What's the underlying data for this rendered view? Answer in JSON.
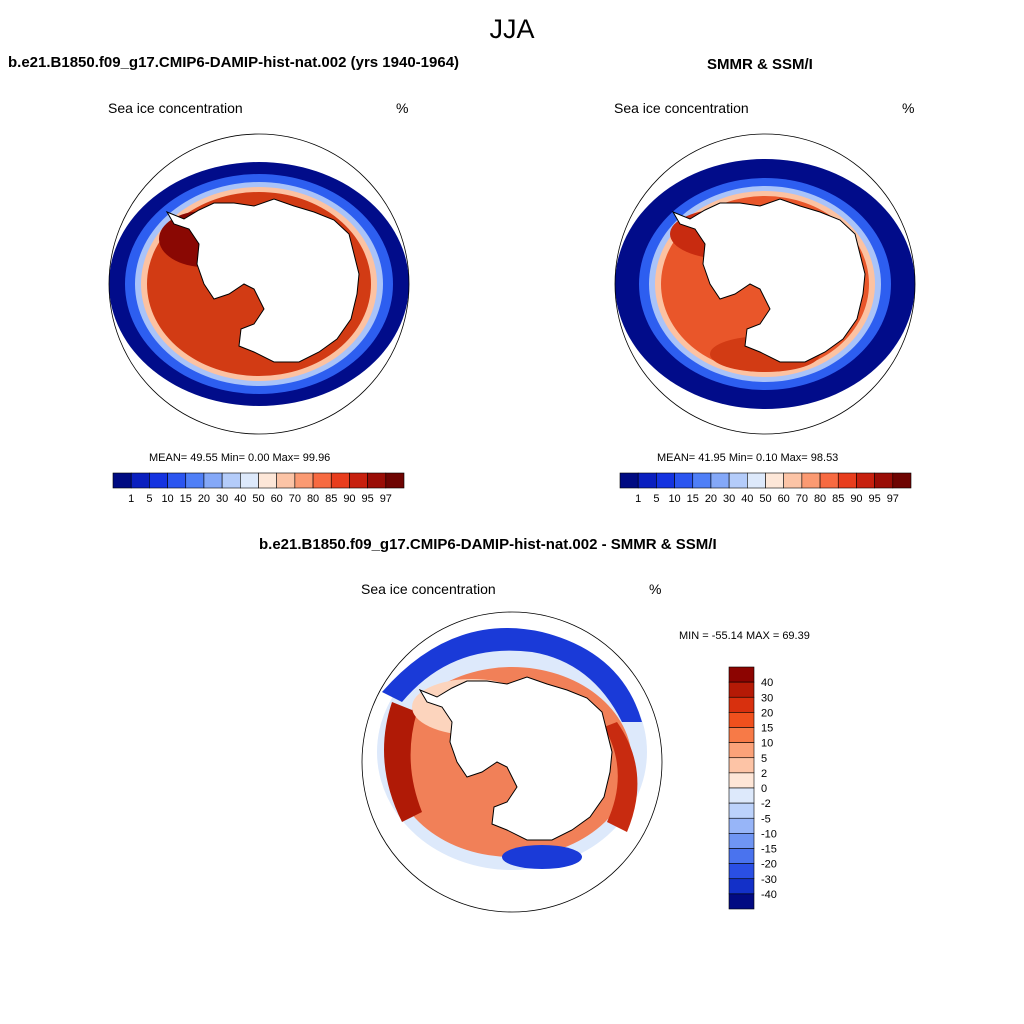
{
  "figure": {
    "season": "JJA"
  },
  "panels": [
    {
      "title": "b.e21.B1850.f09_g17.CMIP6-DAMIP-hist-nat.002 (yrs 1940-1964)",
      "variable": "Sea ice concentration",
      "units": "%",
      "stats": "MEAN=  49.55  Min=   0.00  Max=  99.96",
      "ice": {
        "outer_edge": "dark-blue",
        "band": "dark-red"
      }
    },
    {
      "title": "SMMR & SSM/I",
      "variable": "Sea ice concentration",
      "units": "%",
      "stats": "MEAN=  41.95  Min=   0.10  Max=  98.53"
    },
    {
      "title": "b.e21.B1850.f09_g17.CMIP6-DAMIP-hist-nat.002 - SMMR & SSM/I",
      "variable": "Sea ice concentration",
      "units": "%",
      "minmax": "MIN = -55.14 MAX =  69.39"
    }
  ],
  "colorbar_conc": {
    "labels": [
      "1",
      "5",
      "10",
      "15",
      "20",
      "30",
      "40",
      "50",
      "60",
      "70",
      "80",
      "85",
      "90",
      "95",
      "97"
    ],
    "colors": [
      "#000b82",
      "#0a1fbf",
      "#1433e0",
      "#2b55f0",
      "#4f7ff7",
      "#84a8f8",
      "#b4ccfa",
      "#dde9fb",
      "#fde7d8",
      "#fcc4a6",
      "#fb9a72",
      "#f76a41",
      "#e83d1d",
      "#c7200e",
      "#9a0d06",
      "#6e0402"
    ]
  },
  "colorbar_diff": {
    "labels": [
      "40",
      "30",
      "20",
      "15",
      "10",
      "5",
      "2",
      "0",
      "-2",
      "-5",
      "-10",
      "-15",
      "-20",
      "-30",
      "-40"
    ],
    "colors": [
      "#8c0401",
      "#b51a06",
      "#d8300e",
      "#f0501d",
      "#f77a47",
      "#fba279",
      "#fdc4a6",
      "#fee6d7",
      "#dde9fb",
      "#bcd2fb",
      "#97b5f8",
      "#6f95f3",
      "#4a73ee",
      "#2a4fe4",
      "#1330c8",
      "#020a82"
    ]
  }
}
